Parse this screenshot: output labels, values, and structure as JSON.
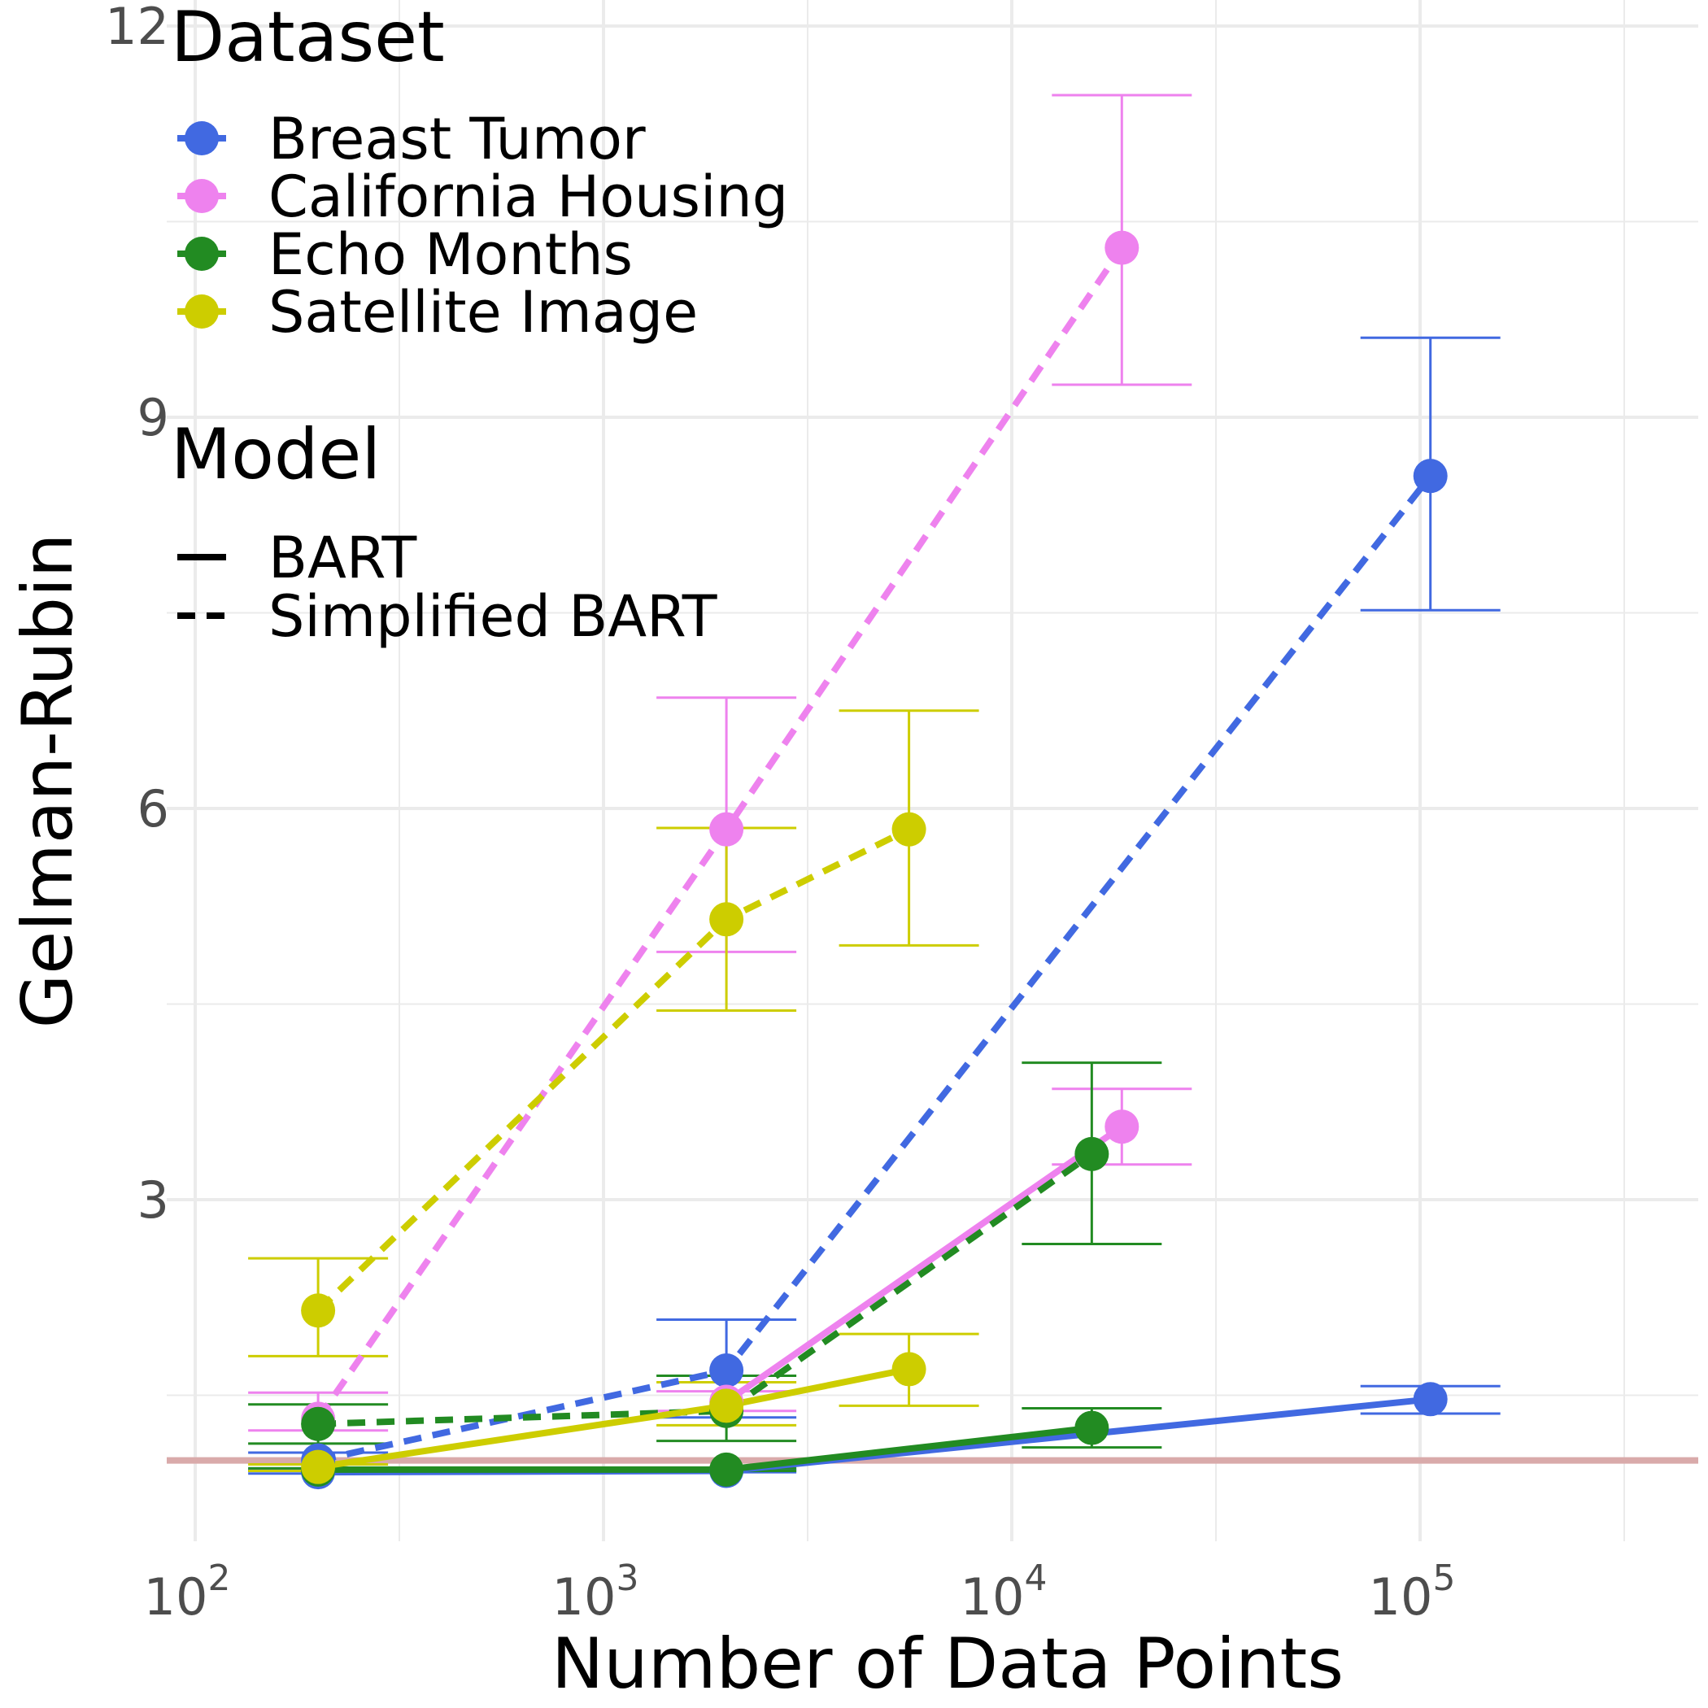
{
  "chart_data": {
    "type": "line",
    "xlabel": "Number of Data Points",
    "ylabel": "Gelman-Rubin",
    "x_scale": "log10",
    "xlim": [
      100,
      600000
    ],
    "ylim": [
      0.6,
      12.2
    ],
    "x_ticks": [
      {
        "value": 100,
        "base": "10",
        "exp": "2"
      },
      {
        "value": 1000,
        "base": "10",
        "exp": "3"
      },
      {
        "value": 10000,
        "base": "10",
        "exp": "4"
      },
      {
        "value": 100000,
        "base": "10",
        "exp": "5"
      }
    ],
    "y_ticks": [
      {
        "value": 3,
        "label": "3"
      },
      {
        "value": 6,
        "label": "6"
      },
      {
        "value": 9,
        "label": "9"
      },
      {
        "value": 12,
        "label": "12"
      }
    ],
    "grid": true,
    "reference_line": {
      "y": 1.0,
      "color": "#d9aaaa"
    },
    "legend": {
      "placement": "top-left",
      "dataset_title": "Dataset",
      "model_title": "Model",
      "datasets": [
        {
          "name": "Breast Tumor",
          "color": "#4169e1"
        },
        {
          "name": "California Housing",
          "color": "#ee82ee"
        },
        {
          "name": "Echo Months",
          "color": "#228b22"
        },
        {
          "name": "Satellite Image",
          "color": "#cdcd00"
        }
      ],
      "models": [
        {
          "name": "BART",
          "linetype": "solid"
        },
        {
          "name": "Simplified BART",
          "linetype": "dashed"
        }
      ]
    },
    "series": [
      {
        "dataset": "Breast Tumor",
        "model": "Simplified BART",
        "color": "#4169e1",
        "dashed": true,
        "points": [
          {
            "x": 200,
            "y": 1.0,
            "lo": 0.93,
            "hi": 1.06
          },
          {
            "x": 2000,
            "y": 1.69,
            "lo": 1.33,
            "hi": 2.08
          },
          {
            "x": 106000,
            "y": 8.55,
            "lo": 7.52,
            "hi": 9.61
          }
        ]
      },
      {
        "dataset": "Breast Tumor",
        "model": "BART",
        "color": "#4169e1",
        "dashed": false,
        "points": [
          {
            "x": 200,
            "y": 0.91,
            "lo": 0.9,
            "hi": 0.93
          },
          {
            "x": 2000,
            "y": 0.92,
            "lo": 0.91,
            "hi": 0.93
          },
          {
            "x": 106000,
            "y": 1.47,
            "lo": 1.36,
            "hi": 1.57
          }
        ]
      },
      {
        "dataset": "California Housing",
        "model": "Simplified BART",
        "color": "#ee82ee",
        "dashed": true,
        "points": [
          {
            "x": 200,
            "y": 1.32,
            "lo": 1.23,
            "hi": 1.52
          },
          {
            "x": 2000,
            "y": 5.84,
            "lo": 4.9,
            "hi": 6.85
          },
          {
            "x": 18600,
            "y": 10.3,
            "lo": 9.25,
            "hi": 11.47
          }
        ]
      },
      {
        "dataset": "California Housing",
        "model": "BART",
        "color": "#ee82ee",
        "dashed": false,
        "points": [
          {
            "x": 2000,
            "y": 1.45,
            "lo": 1.38,
            "hi": 1.53
          },
          {
            "x": 18600,
            "y": 3.56,
            "lo": 3.27,
            "hi": 3.85
          }
        ]
      },
      {
        "dataset": "Echo Months",
        "model": "Simplified BART",
        "color": "#228b22",
        "dashed": true,
        "points": [
          {
            "x": 200,
            "y": 1.28,
            "lo": 1.13,
            "hi": 1.43
          },
          {
            "x": 2000,
            "y": 1.38,
            "lo": 1.15,
            "hi": 1.65
          },
          {
            "x": 15700,
            "y": 3.35,
            "lo": 2.66,
            "hi": 4.05
          }
        ]
      },
      {
        "dataset": "Echo Months",
        "model": "BART",
        "color": "#228b22",
        "dashed": false,
        "points": [
          {
            "x": 200,
            "y": 0.93,
            "lo": 0.92,
            "hi": 0.94
          },
          {
            "x": 2000,
            "y": 0.93,
            "lo": 0.92,
            "hi": 0.94
          },
          {
            "x": 15700,
            "y": 1.25,
            "lo": 1.1,
            "hi": 1.4
          }
        ]
      },
      {
        "dataset": "Satellite Image",
        "model": "Simplified BART",
        "color": "#cdcd00",
        "dashed": true,
        "points": [
          {
            "x": 200,
            "y": 2.15,
            "lo": 1.8,
            "hi": 2.55
          },
          {
            "x": 2000,
            "y": 5.15,
            "lo": 4.45,
            "hi": 5.85
          },
          {
            "x": 5600,
            "y": 5.84,
            "lo": 4.95,
            "hi": 6.75
          }
        ]
      },
      {
        "dataset": "Satellite Image",
        "model": "BART",
        "color": "#cdcd00",
        "dashed": false,
        "points": [
          {
            "x": 200,
            "y": 0.95,
            "lo": 0.92,
            "hi": 0.97
          },
          {
            "x": 2000,
            "y": 1.42,
            "lo": 1.27,
            "hi": 1.6
          },
          {
            "x": 5600,
            "y": 1.7,
            "lo": 1.42,
            "hi": 1.97
          }
        ]
      }
    ]
  }
}
